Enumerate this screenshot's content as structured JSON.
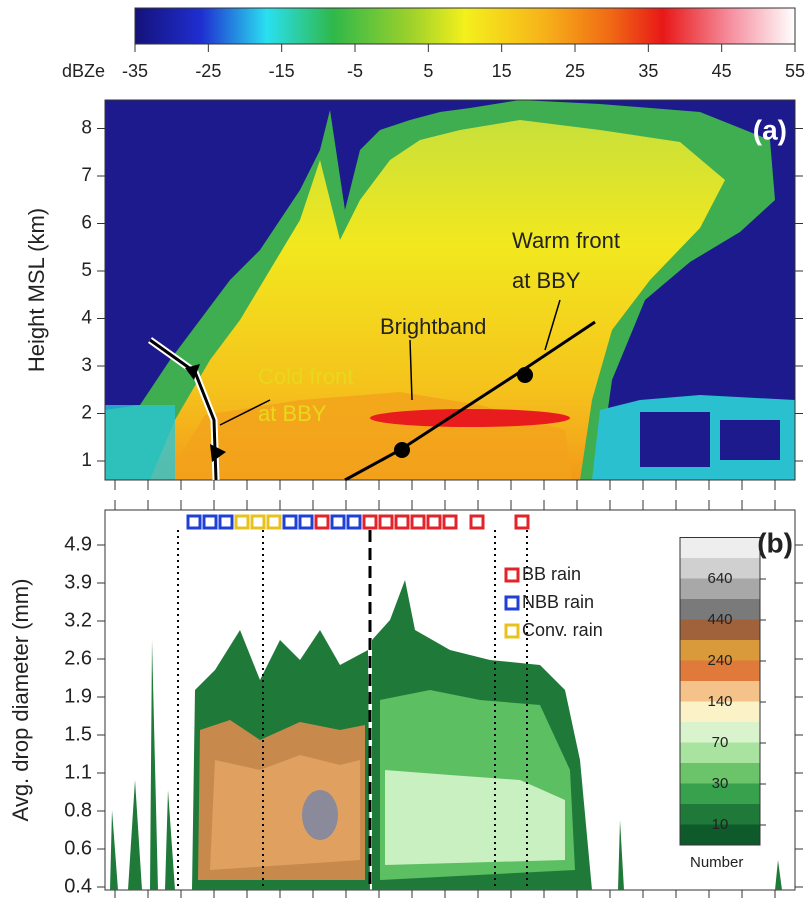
{
  "chart_data": [
    {
      "type": "heatmap",
      "panel_label": "(a)",
      "ylabel": "Height MSL (km)",
      "ylim": [
        0.6,
        8.6
      ],
      "yticks": [
        1,
        2,
        3,
        4,
        5,
        6,
        7,
        8
      ],
      "colorbar": {
        "label": "dBZe",
        "lim": [
          -35,
          55
        ],
        "ticks": [
          -35,
          -25,
          -15,
          -5,
          5,
          15,
          25,
          35,
          45,
          55
        ]
      },
      "annotations": {
        "warm_front": [
          "Warm front",
          "at BBY"
        ],
        "brightband": "Brightband",
        "cold_front": [
          "Cold front",
          "at BBY"
        ]
      }
    },
    {
      "type": "heatmap",
      "panel_label": "(b)",
      "ylabel": "Avg. drop diameter (mm)",
      "ycategories": [
        "0.4",
        "0.6",
        "0.8",
        "1.1",
        "1.5",
        "1.9",
        "2.6",
        "3.2",
        "3.9",
        "4.9"
      ],
      "legend": [
        {
          "name": "BB rain",
          "color": "#e2232a"
        },
        {
          "name": "NBB rain",
          "color": "#1f3fd6"
        },
        {
          "name": "Conv. rain",
          "color": "#e8c21c"
        }
      ],
      "colorbar": {
        "label": "Number",
        "ticks": [
          10,
          30,
          70,
          140,
          240,
          440,
          640
        ]
      }
    }
  ]
}
